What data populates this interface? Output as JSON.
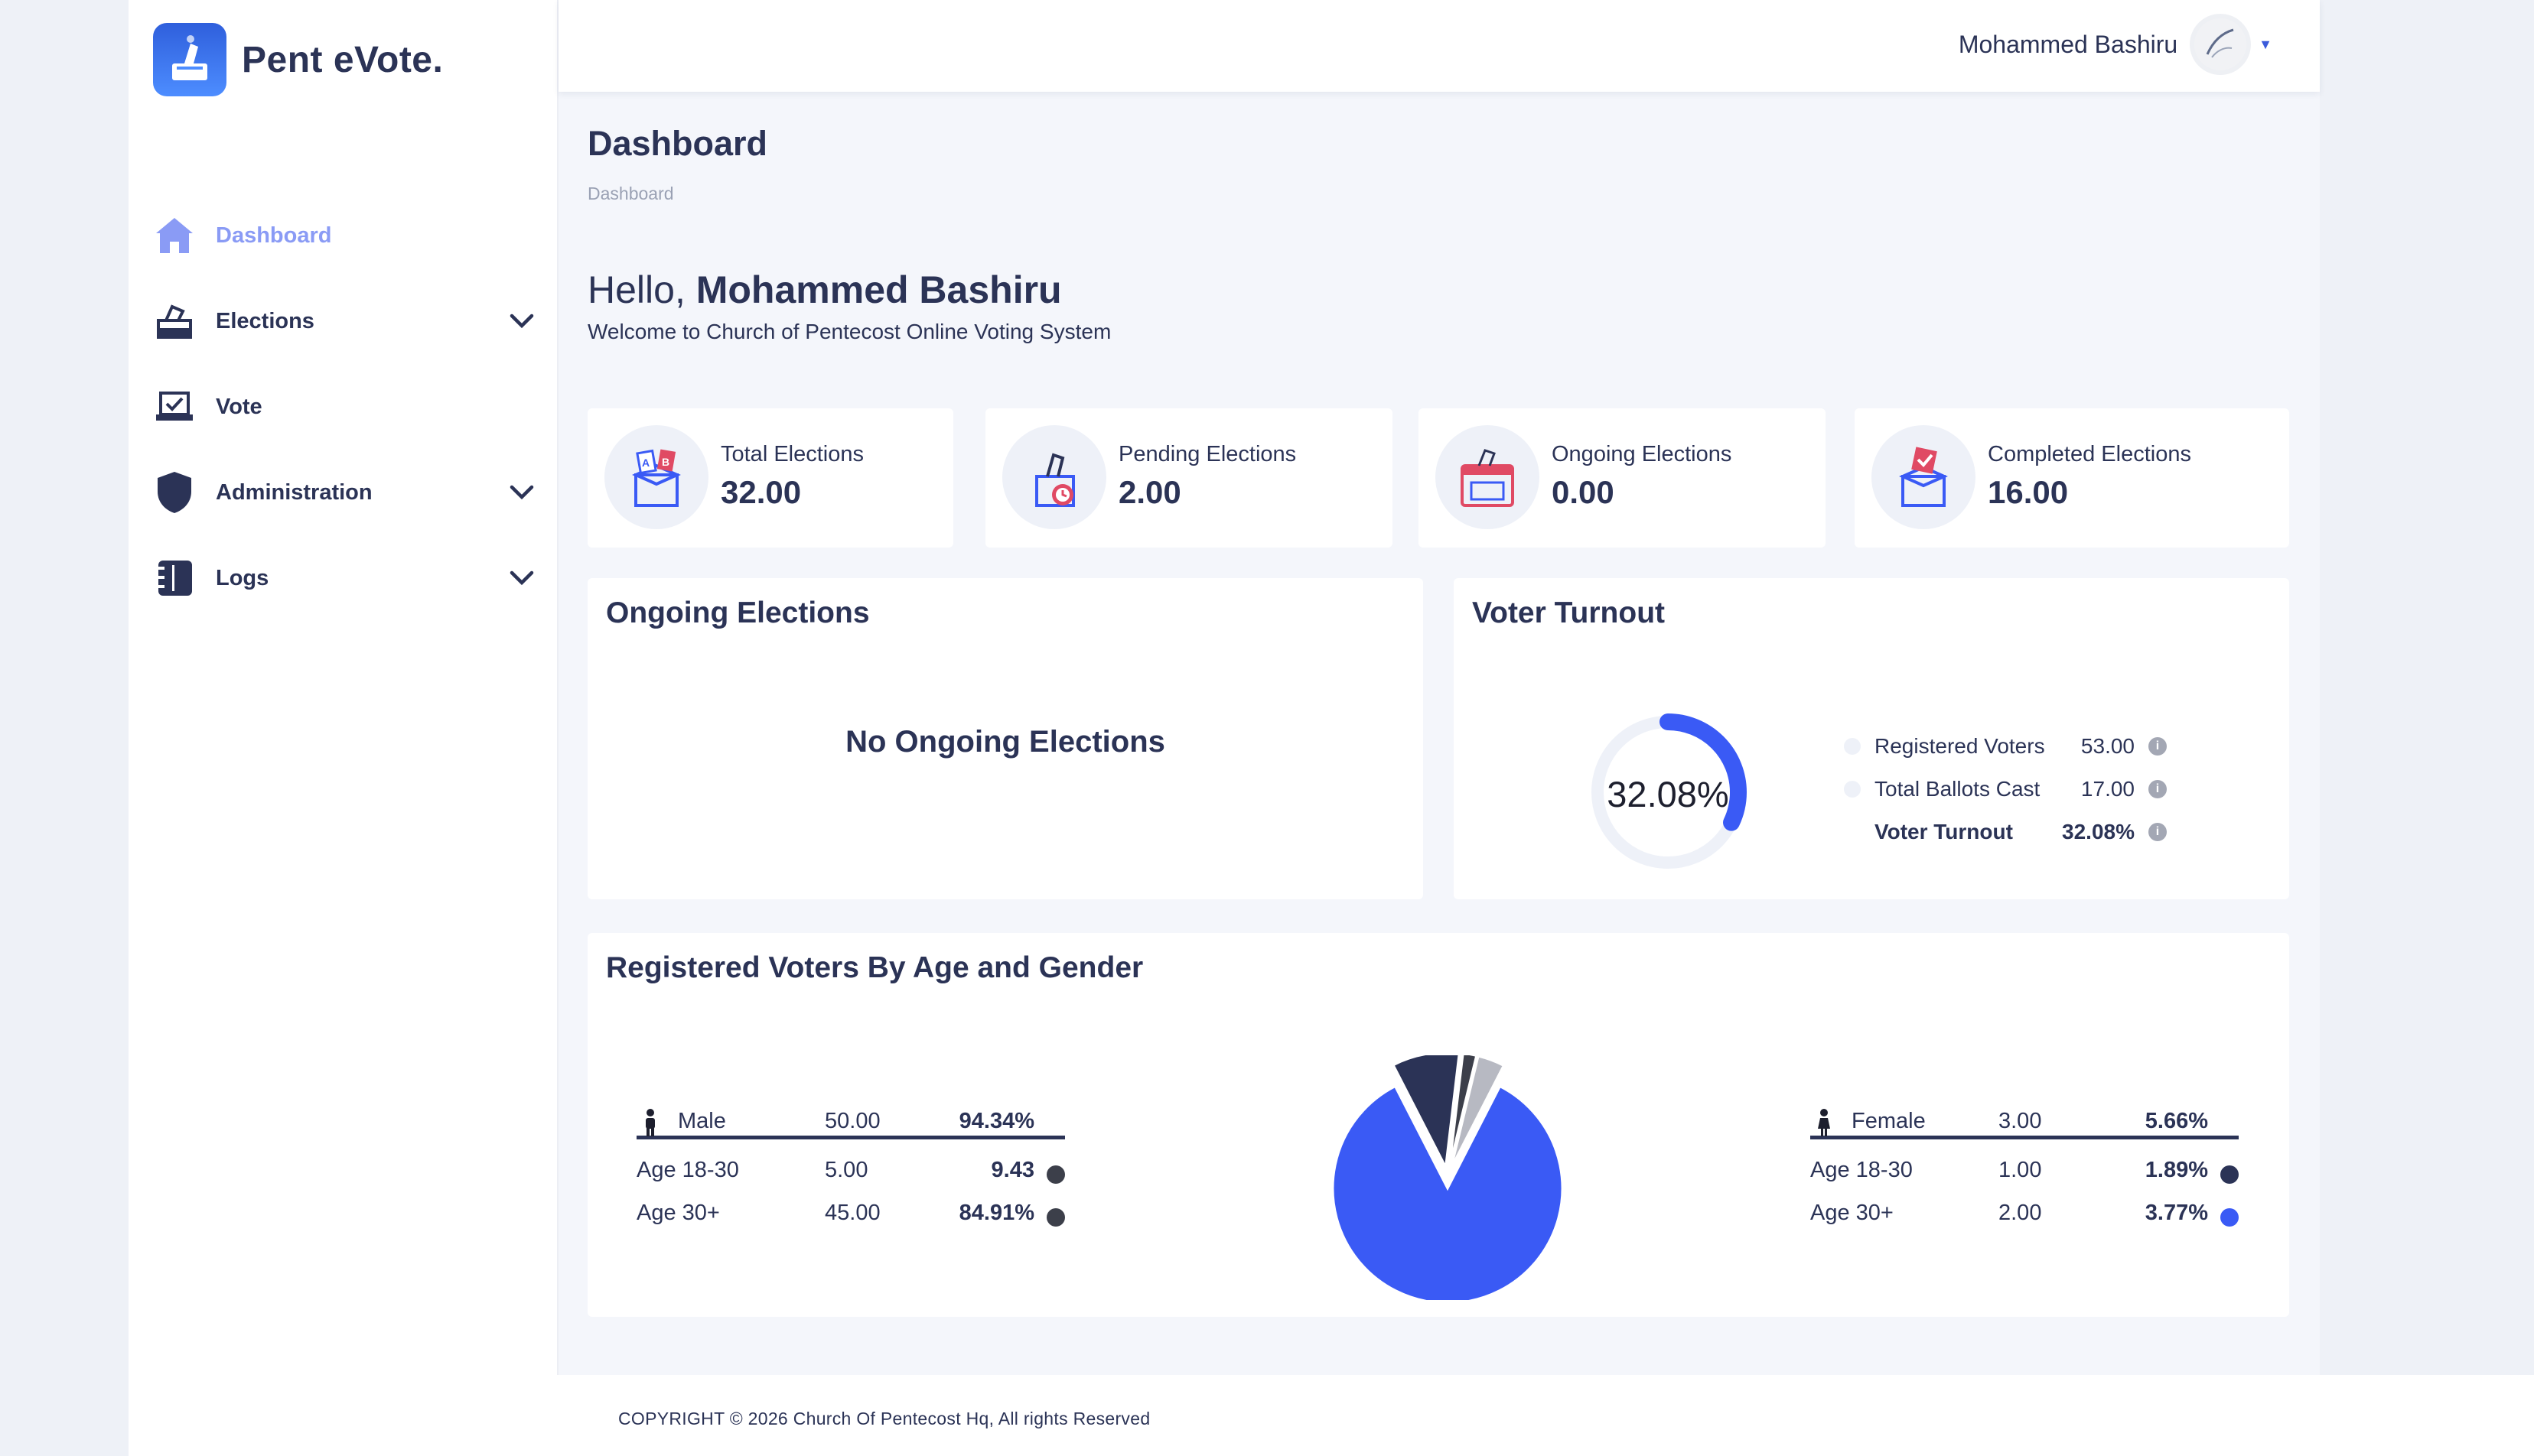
{
  "brand": {
    "name": "Pent eVote."
  },
  "sidebar": {
    "items": [
      {
        "label": "Dashboard",
        "icon": "home-icon",
        "active": true,
        "expandable": false
      },
      {
        "label": "Elections",
        "icon": "ballot-box-icon",
        "active": false,
        "expandable": true
      },
      {
        "label": "Vote",
        "icon": "vote-check-icon",
        "active": false,
        "expandable": false
      },
      {
        "label": "Administration",
        "icon": "shield-icon",
        "active": false,
        "expandable": true
      },
      {
        "label": "Logs",
        "icon": "notebook-icon",
        "active": false,
        "expandable": true
      }
    ]
  },
  "header": {
    "user_name": "Mohammed Bashiru"
  },
  "page": {
    "title": "Dashboard",
    "breadcrumb": "Dashboard",
    "greeting_prefix": "Hello, ",
    "greeting_name": "Mohammed Bashiru",
    "welcome": "Welcome to Church of Pentecost Online Voting System"
  },
  "stats": [
    {
      "label": "Total Elections",
      "value": "32.00",
      "icon": "ab-ballot-box-icon"
    },
    {
      "label": "Pending Elections",
      "value": "2.00",
      "icon": "pending-ballot-icon"
    },
    {
      "label": "Ongoing Elections",
      "value": "0.00",
      "icon": "ongoing-ballot-icon"
    },
    {
      "label": "Completed Elections",
      "value": "16.00",
      "icon": "completed-ballot-icon"
    }
  ],
  "ongoing": {
    "title": "Ongoing Elections",
    "empty_message": "No Ongoing Elections"
  },
  "turnout": {
    "title": "Voter Turnout",
    "percent_text": "32.08%",
    "percent": 32.08,
    "rows": [
      {
        "label": "Registered Voters",
        "value": "53.00"
      },
      {
        "label": "Total Ballots Cast",
        "value": "17.00"
      },
      {
        "label": "Voter Turnout",
        "value": "32.08%"
      }
    ]
  },
  "demographics": {
    "title": "Registered Voters By Age and Gender",
    "male": {
      "label": "Male",
      "count": "50.00",
      "percent": "94.34%",
      "rows": [
        {
          "label": "Age 18-30",
          "count": "5.00",
          "percent": "9.43",
          "color": "#3c3f4a"
        },
        {
          "label": "Age 30+",
          "count": "45.00",
          "percent": "84.91%",
          "color": "#3c3f4a"
        }
      ]
    },
    "female": {
      "label": "Female",
      "count": "3.00",
      "percent": "5.66%",
      "rows": [
        {
          "label": "Age 18-30",
          "count": "1.00",
          "percent": "1.89%",
          "color": "#2b3356"
        },
        {
          "label": "Age 30+",
          "count": "2.00",
          "percent": "3.77%",
          "color": "#3a5af5"
        }
      ]
    }
  },
  "chart_data": {
    "type": "pie",
    "categories": [
      "Male Age 30+",
      "Male Age 18-30",
      "Female Age 18-30",
      "Female Age 30+"
    ],
    "values": [
      84.91,
      9.43,
      1.89,
      3.77
    ],
    "colors": [
      "#3a5af5",
      "#2b3356",
      "#3c3f4a",
      "#b7b9c2"
    ]
  },
  "footer": {
    "copyright": "COPYRIGHT © 2026 Church Of Pentecost Hq, All rights Reserved"
  },
  "colors": {
    "accent": "#3a5af5",
    "navy": "#2b3356",
    "active_nav": "#8a9bf5",
    "background": "#f4f6fb"
  }
}
